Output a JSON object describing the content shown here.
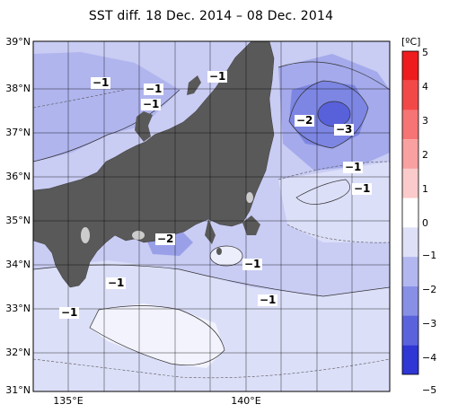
{
  "title": "SST diff. 18 Dec. 2014 – 08 Dec. 2014",
  "colorbar": {
    "unit": "[ºC]",
    "ticks": [
      "5",
      "4",
      "3",
      "2",
      "1",
      "0",
      "−1",
      "−2",
      "−3",
      "−4",
      "−5"
    ],
    "colors": [
      "#ee1c1c",
      "#f34848",
      "#f77474",
      "#f9a0a0",
      "#fbcaca",
      "#ffffff",
      "#dde0f7",
      "#b3b7ef",
      "#8890e6",
      "#5b63dc",
      "#2f36d4"
    ]
  },
  "axes": {
    "lat_labels": [
      "39°N",
      "38°N",
      "37°N",
      "36°N",
      "35°N",
      "34°N",
      "33°N",
      "32°N",
      "31°N"
    ],
    "lon_labels": [
      "135°E",
      "140°E"
    ]
  },
  "contour_labels": [
    "−1",
    "−1",
    "−1",
    "−1",
    "−2",
    "−3",
    "−1",
    "−1",
    "−2",
    "−1",
    "−1",
    "−1",
    "−1"
  ],
  "colors": {
    "land": "#595959",
    "lake": "#cccccc",
    "grid": "#000000"
  }
}
